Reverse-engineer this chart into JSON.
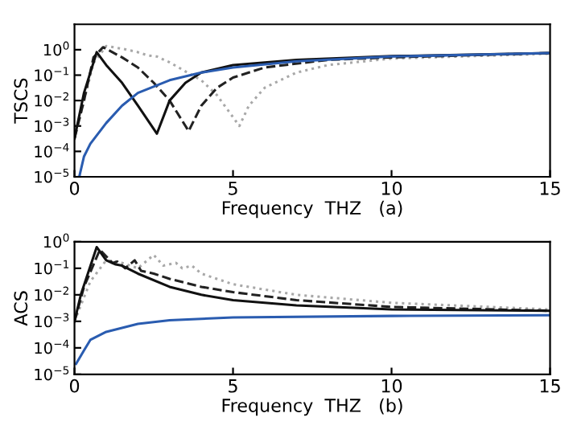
{
  "chart_data": [
    {
      "type": "line",
      "xlabel": "Frequency  THZ   (a)",
      "ylabel": "TSCS",
      "log": "y",
      "grid": false,
      "xlim": [
        0,
        15
      ],
      "xticks": [
        0,
        5,
        10,
        15
      ],
      "ylim": [
        1e-05,
        10
      ],
      "yticks": [
        {
          "value": 1e-05,
          "label": "10$^{−5}$"
        },
        {
          "value": 0.0001,
          "label": "10$^{−4}$"
        },
        {
          "value": 0.001,
          "label": "10$^{−3}$"
        },
        {
          "value": 0.01,
          "label": "10$^{−2}$"
        },
        {
          "value": 0.1,
          "label": "10$^{−1}$"
        },
        {
          "value": 1,
          "label": "10$^{0}$"
        }
      ],
      "series": [
        {
          "color": "#a8a8a8",
          "line_style": "dotted",
          "x": [
            0,
            0.3,
            0.6,
            1.0,
            1.5,
            2.0,
            2.3,
            2.6,
            3.0,
            3.5,
            4.0,
            4.5,
            5.2,
            5.5,
            6.0,
            7.0,
            8.0,
            10.0,
            15.0
          ],
          "values": [
            0.00032,
            0.01,
            0.3,
            1.4,
            1.1,
            0.8,
            0.6,
            0.54,
            0.32,
            0.14,
            0.063,
            0.016,
            0.001,
            0.0063,
            0.032,
            0.126,
            0.25,
            0.45,
            0.7
          ]
        },
        {
          "color": "#222222",
          "line_style": "dashed",
          "x": [
            0,
            0.3,
            0.6,
            0.9,
            1.5,
            2.0,
            2.5,
            3.0,
            3.6,
            4.0,
            4.5,
            5.0,
            6.0,
            8.0,
            10.0,
            15.0
          ],
          "values": [
            0.00032,
            0.01,
            0.5,
            1.26,
            0.5,
            0.2,
            0.05,
            0.01,
            0.00063,
            0.0063,
            0.032,
            0.08,
            0.2,
            0.4,
            0.5,
            0.74
          ]
        },
        {
          "color": "#111111",
          "line_style": "solid",
          "x": [
            0,
            0.3,
            0.7,
            1.0,
            1.5,
            2.0,
            2.6,
            3.0,
            3.5,
            4.0,
            5.0,
            7.0,
            10.0,
            15.0
          ],
          "values": [
            0.00032,
            0.02,
            0.8,
            0.25,
            0.05,
            0.0063,
            0.0005,
            0.01,
            0.05,
            0.126,
            0.25,
            0.4,
            0.56,
            0.74
          ]
        },
        {
          "color": "#2a5cb0",
          "line_style": "solid",
          "x": [
            0.15,
            0.3,
            0.5,
            1.0,
            1.5,
            2.0,
            3.0,
            4.0,
            5.0,
            7.0,
            10.0,
            15.0
          ],
          "values": [
            1e-05,
            6.3e-05,
            0.0002,
            0.0013,
            0.0063,
            0.02,
            0.063,
            0.126,
            0.2,
            0.35,
            0.54,
            0.74
          ]
        }
      ]
    },
    {
      "type": "line",
      "xlabel": "Frequency  THZ   (b)",
      "ylabel": "ACS",
      "log": "y",
      "grid": false,
      "xlim": [
        0,
        15
      ],
      "xticks": [
        0,
        5,
        10,
        15
      ],
      "ylim": [
        1e-05,
        1
      ],
      "yticks": [
        {
          "value": 1e-05,
          "label": "10$^{−5}$"
        },
        {
          "value": 0.0001,
          "label": "10$^{−4}$"
        },
        {
          "value": 0.001,
          "label": "10$^{−3}$"
        },
        {
          "value": 0.01,
          "label": "10$^{−2}$"
        },
        {
          "value": 0.1,
          "label": "10$^{−1}$"
        },
        {
          "value": 1,
          "label": "10$^{0}$"
        }
      ],
      "series": [
        {
          "color": "#a8a8a8",
          "line_style": "dotted",
          "x": [
            0,
            0.5,
            1.0,
            1.5,
            2.0,
            2.5,
            2.8,
            3.2,
            3.4,
            3.7,
            4.0,
            5.0,
            7.0,
            10.0,
            15.0
          ],
          "values": [
            0.001,
            0.032,
            0.2,
            0.16,
            0.1,
            0.32,
            0.126,
            0.16,
            0.1,
            0.126,
            0.063,
            0.025,
            0.01,
            0.005,
            0.0028
          ]
        },
        {
          "color": "#222222",
          "line_style": "dashed",
          "x": [
            0,
            0.3,
            0.8,
            1.2,
            1.35,
            1.6,
            1.9,
            2.1,
            2.5,
            3.0,
            4.0,
            5.0,
            7.0,
            10.0,
            15.0
          ],
          "values": [
            0.001,
            0.02,
            0.5,
            0.16,
            0.18,
            0.1,
            0.2,
            0.08,
            0.063,
            0.04,
            0.02,
            0.0126,
            0.0063,
            0.0035,
            0.0025
          ]
        },
        {
          "color": "#111111",
          "line_style": "solid",
          "x": [
            0,
            0.2,
            0.7,
            1.0,
            1.3,
            1.5,
            2.0,
            3.0,
            4.0,
            5.0,
            7.0,
            10.0,
            15.0
          ],
          "values": [
            0.001,
            0.01,
            0.63,
            0.2,
            0.14,
            0.126,
            0.063,
            0.02,
            0.01,
            0.0063,
            0.004,
            0.0028,
            0.0025
          ]
        },
        {
          "color": "#2a5cb0",
          "line_style": "solid",
          "x": [
            0.05,
            0.3,
            0.5,
            1.0,
            2.0,
            3.0,
            5.0,
            10.0,
            15.0
          ],
          "values": [
            2.5e-05,
            8e-05,
            0.0002,
            0.0004,
            0.0008,
            0.0011,
            0.0014,
            0.0016,
            0.0017
          ]
        }
      ]
    }
  ]
}
